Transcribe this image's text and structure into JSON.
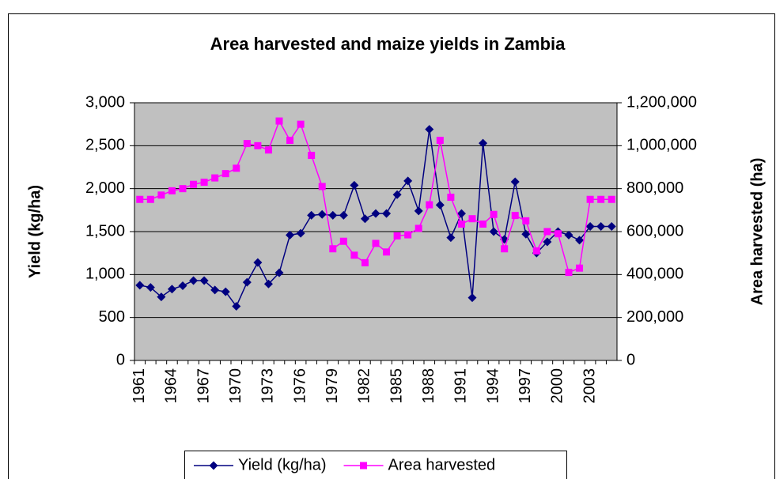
{
  "chart_data": {
    "type": "line",
    "title": "Area harvested and maize yields in Zambia",
    "ylabel": "Yield (kg/ha)",
    "y2label": "Area harvested (ha)",
    "categories": [
      "1961",
      null,
      null,
      "1964",
      null,
      null,
      "1967",
      null,
      null,
      "1970",
      null,
      null,
      "1973",
      null,
      null,
      "1976",
      null,
      null,
      "1979",
      null,
      null,
      "1982",
      null,
      null,
      "1985",
      null,
      null,
      "1988",
      null,
      null,
      "1991",
      null,
      null,
      "1994",
      null,
      null,
      "1997",
      null,
      null,
      "2000",
      null,
      null,
      "2003",
      null,
      null
    ],
    "series": [
      {
        "name": "Yield (kg/ha)",
        "color": "#000080",
        "marker": "diamond",
        "values": [
          875,
          850,
          740,
          830,
          870,
          930,
          930,
          820,
          800,
          630,
          910,
          1140,
          890,
          1020,
          1460,
          1480,
          1690,
          1700,
          1690,
          1690,
          2040,
          1650,
          1710,
          1710,
          1930,
          2090,
          1740,
          2690,
          1810,
          1430,
          1710,
          730,
          2530,
          1500,
          1410,
          2080,
          1470,
          1250,
          1380,
          1500,
          1460,
          1400,
          1560,
          1560,
          1560
        ]
      },
      {
        "name": "Area harvested",
        "color": "#ff00ff",
        "marker": "square",
        "axis": "y2",
        "values": [
          750000,
          750000,
          770000,
          790000,
          800000,
          820000,
          830000,
          850000,
          870000,
          895000,
          1010000,
          1000000,
          980000,
          1115000,
          1025000,
          1100000,
          955000,
          810000,
          520000,
          555000,
          490000,
          455000,
          545000,
          505000,
          580000,
          585000,
          615000,
          725000,
          1025000,
          760000,
          635000,
          660000,
          635000,
          680000,
          520000,
          675000,
          650000,
          510000,
          600000,
          590000,
          410000,
          430000,
          750000,
          750000,
          750000
        ]
      }
    ],
    "ylim": [
      0,
      3000
    ],
    "yticks": [
      0,
      500,
      {
        "value": 1000,
        "label": "1,000"
      },
      {
        "value": 1500,
        "label": "1,500"
      },
      {
        "value": 2000,
        "label": "2,000"
      },
      {
        "value": 2500,
        "label": "2,500"
      },
      {
        "value": 3000,
        "label": "3,000"
      }
    ],
    "y2lim": [
      0,
      1200000
    ],
    "y2ticks": [
      0,
      {
        "value": 200000,
        "label": "200,000"
      },
      {
        "value": 400000,
        "label": "400,000"
      },
      {
        "value": 600000,
        "label": "600,000"
      },
      {
        "value": 800000,
        "label": "800,000"
      },
      {
        "value": 1000000,
        "label": "1,000,000"
      },
      {
        "value": 1200000,
        "label": "1,200,000"
      }
    ],
    "grid": true,
    "legend": "bottom"
  }
}
